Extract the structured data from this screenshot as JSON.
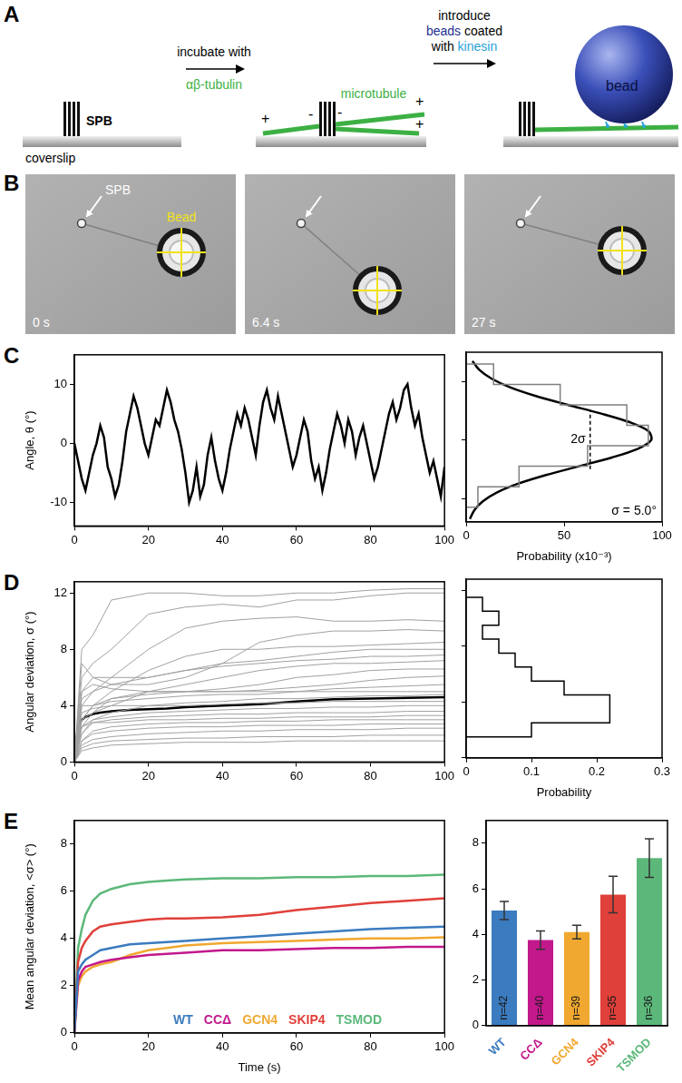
{
  "schematic": {
    "panel": "A",
    "spb": "SPB",
    "coverslip": "coverslip",
    "plus": "+",
    "minus": "-",
    "microtubule": "microtubule",
    "bead": "bead",
    "step1": [
      [
        {
          "text": "incubate with",
          "color": "#000000"
        }
      ],
      [
        {
          "text": "αβ-tubulin",
          "color": "#3cb043"
        }
      ]
    ],
    "step2": [
      [
        {
          "text": "introduce",
          "color": "#000000"
        }
      ],
      [
        {
          "text": "beads",
          "color": "#1f2f8f"
        },
        {
          "text": " coated",
          "color": "#000000"
        }
      ],
      [
        {
          "text": "with ",
          "color": "#000000"
        },
        {
          "text": "kinesin",
          "color": "#29a3d6"
        }
      ]
    ]
  },
  "micrographs": {
    "panel": "B",
    "spb_label": "SPB",
    "bead_label": "Bead",
    "frames": [
      "0 s",
      "6.4 s",
      "27 s"
    ]
  },
  "chart_data": [
    {
      "panel": "C",
      "type": "line",
      "ylabel": "Angle, θ (°)",
      "x": [
        0,
        1,
        2,
        3,
        4,
        5,
        6,
        7,
        8,
        9,
        10,
        11,
        12,
        13,
        14,
        15,
        16,
        17,
        18,
        19,
        20,
        21,
        22,
        23,
        24,
        25,
        26,
        27,
        28,
        29,
        30,
        31,
        32,
        33,
        34,
        35,
        36,
        37,
        38,
        39,
        40,
        41,
        42,
        43,
        44,
        45,
        46,
        47,
        48,
        49,
        50,
        51,
        52,
        53,
        54,
        55,
        56,
        57,
        58,
        59,
        60,
        61,
        62,
        63,
        64,
        65,
        66,
        67,
        68,
        69,
        70,
        71,
        72,
        73,
        74,
        75,
        76,
        77,
        78,
        79,
        80,
        81,
        82,
        83,
        84,
        85,
        86,
        87,
        88,
        89,
        90,
        91,
        92,
        93,
        94,
        95,
        96,
        97,
        98,
        99,
        100
      ],
      "series": [
        {
          "color": "#000000",
          "values": [
            0,
            -3,
            -6,
            -8,
            -5,
            -2,
            0,
            3,
            1,
            -4,
            -6,
            -9,
            -7,
            -3,
            2,
            5,
            8,
            6,
            3,
            0,
            -2,
            1,
            4,
            3,
            6,
            9,
            7,
            4,
            2,
            -1,
            -5,
            -10,
            -8,
            -4,
            -9,
            -7,
            -2,
            1,
            -3,
            -6,
            -8,
            -5,
            -1,
            2,
            5,
            3,
            6,
            4,
            1,
            -2,
            3,
            7,
            9,
            6,
            4,
            8,
            5,
            2,
            -1,
            -4,
            -2,
            1,
            4,
            2,
            -3,
            -6,
            -4,
            -8,
            -5,
            -1,
            2,
            5,
            3,
            0,
            4,
            2,
            -2,
            1,
            3,
            0,
            -3,
            -6,
            -4,
            -1,
            2,
            5,
            7,
            4,
            6,
            9,
            10,
            6,
            3,
            5,
            1,
            -2,
            -5,
            -3,
            -6,
            -9,
            -4
          ]
        }
      ],
      "xlim": [
        0,
        100
      ],
      "xticks": [
        0,
        20,
        40,
        60,
        80,
        100
      ],
      "ylim": [
        -14,
        15
      ],
      "yticks": [
        -10,
        0,
        10
      ],
      "grid": false
    },
    {
      "type": "histogram",
      "orientation": "horizontal",
      "xlabel": "Probability (x10⁻³)",
      "bins": [
        -11.5,
        -8,
        -4.5,
        -1,
        2.5,
        6,
        9.5,
        13
      ],
      "counts": [
        6,
        27,
        62,
        93,
        82,
        48,
        14
      ],
      "color": "#808080",
      "fit": {
        "color": "#000000",
        "y": [
          -13.5,
          -12,
          -10.5,
          -9,
          -7.5,
          -6,
          -4.5,
          -3,
          -1.5,
          0,
          1.5,
          3,
          4.5,
          6,
          7.5,
          9,
          10.5,
          12,
          13.5
        ],
        "x": [
          1.9,
          4.2,
          8.5,
          15.6,
          26.4,
          40.8,
          57.6,
          74.4,
          87.7,
          94.5,
          93.1,
          83.8,
          69,
          51.9,
          35.6,
          22.4,
          12.9,
          6.7,
          3.2
        ]
      },
      "sigma": 5.0,
      "sigma_label": "2σ",
      "fit_label": "σ = 5.0°",
      "xlim": [
        0,
        100
      ],
      "xticks": [
        0,
        50,
        100
      ],
      "ylim": [
        -14,
        15
      ],
      "yticks": [
        -10,
        0,
        10
      ],
      "tick_labels": "x",
      "grid": false
    },
    {
      "panel": "D",
      "type": "line",
      "ylabel": "Angular deviation, σ (°)",
      "x": [
        0,
        2,
        5,
        10,
        20,
        30,
        40,
        50,
        60,
        70,
        80,
        90,
        100
      ],
      "series": [
        {
          "color": "#a0a0a0",
          "values": [
            0,
            8,
            9,
            11.5,
            12,
            12,
            11.8,
            11.8,
            12,
            12,
            12.2,
            12.3,
            12.3
          ]
        },
        {
          "color": "#a0a0a0",
          "values": [
            0,
            6,
            7,
            8,
            10.5,
            11,
            11.2,
            11,
            11.5,
            11.5,
            11.8,
            12,
            12
          ]
        },
        {
          "color": "#a0a0a0",
          "values": [
            0,
            4,
            5,
            6,
            8,
            9.5,
            10,
            10.2,
            10.3,
            10,
            10,
            10.1,
            10
          ]
        },
        {
          "color": "#a0a0a0",
          "values": [
            0,
            5,
            6,
            5.5,
            5.5,
            6,
            7,
            8.5,
            9,
            9.3,
            9.3,
            9.4,
            9.3
          ]
        },
        {
          "color": "#a0a0a0",
          "values": [
            0,
            3,
            4,
            5,
            6.5,
            7.5,
            8,
            8,
            8.2,
            8.2,
            8.3,
            8.4,
            8.5
          ]
        },
        {
          "color": "#a0a0a0",
          "values": [
            0,
            7,
            6,
            6,
            6,
            6.5,
            7,
            7.2,
            7.5,
            7.8,
            8,
            8,
            8
          ]
        },
        {
          "color": "#a0a0a0",
          "values": [
            0,
            4.5,
            5,
            5.5,
            6,
            6.5,
            6.8,
            7,
            7.2,
            7.3,
            7.5,
            7.5,
            7.6
          ]
        },
        {
          "color": "#a0a0a0",
          "values": [
            0,
            3,
            3.5,
            4,
            5,
            5.5,
            6,
            6.5,
            6.8,
            7,
            7,
            7.1,
            7.2
          ]
        },
        {
          "color": "#a0a0a0",
          "values": [
            0,
            2.5,
            3.5,
            4.5,
            5,
            5,
            5.2,
            5.5,
            6,
            6.2,
            6.5,
            6.6,
            6.6
          ]
        },
        {
          "color": "#a0a0a0",
          "values": [
            0,
            5,
            5.5,
            5.2,
            5,
            5,
            5,
            5.1,
            5.3,
            5.5,
            5.8,
            6,
            6.1
          ]
        },
        {
          "color": "#a0a0a0",
          "values": [
            0,
            3,
            4,
            4.5,
            4.8,
            5,
            5,
            5,
            5,
            5.2,
            5.3,
            5.4,
            5.5
          ]
        },
        {
          "color": "#a0a0a0",
          "values": [
            0,
            4,
            4,
            4.3,
            4.5,
            4.7,
            4.8,
            4.8,
            5,
            5,
            5,
            5,
            5
          ]
        },
        {
          "color": "#a0a0a0",
          "values": [
            0,
            2,
            3,
            3.5,
            4,
            4.2,
            4.3,
            4.5,
            4.5,
            4.6,
            4.7,
            4.7,
            4.8
          ]
        },
        {
          "color": "#a0a0a0",
          "values": [
            0,
            3.5,
            3.8,
            4,
            4,
            4,
            4.1,
            4.2,
            4.2,
            4.3,
            4.3,
            4.3,
            4.3
          ]
        },
        {
          "color": "#a0a0a0",
          "values": [
            0,
            2.5,
            3,
            3.2,
            3.5,
            3.6,
            3.7,
            3.8,
            3.8,
            3.9,
            3.9,
            4,
            4
          ]
        },
        {
          "color": "#a0a0a0",
          "values": [
            0,
            2,
            2.8,
            3,
            3.2,
            3.3,
            3.4,
            3.4,
            3.5,
            3.5,
            3.5,
            3.6,
            3.6
          ]
        },
        {
          "color": "#a0a0a0",
          "values": [
            0,
            2.5,
            2.8,
            2.8,
            3,
            3,
            3.1,
            3.1,
            3.2,
            3.2,
            3.2,
            3.3,
            3.3
          ]
        },
        {
          "color": "#a0a0a0",
          "values": [
            0,
            1.5,
            2.2,
            2.5,
            2.7,
            2.8,
            2.8,
            2.9,
            2.9,
            3,
            3,
            3,
            3
          ]
        },
        {
          "color": "#a0a0a0",
          "values": [
            0,
            1.5,
            2,
            2.2,
            2.4,
            2.5,
            2.5,
            2.6,
            2.6,
            2.6,
            2.7,
            2.7,
            2.7
          ]
        },
        {
          "color": "#a0a0a0",
          "values": [
            0,
            1.2,
            1.6,
            1.8,
            2,
            2.1,
            2.2,
            2.2,
            2.3,
            2.3,
            2.3,
            2.4,
            2.4
          ]
        },
        {
          "color": "#a0a0a0",
          "values": [
            0,
            1,
            1.3,
            1.5,
            1.6,
            1.7,
            1.7,
            1.8,
            1.8,
            1.8,
            1.9,
            1.9,
            1.9
          ]
        },
        {
          "color": "#a0a0a0",
          "values": [
            0,
            0.8,
            1,
            1.2,
            1.3,
            1.4,
            1.4,
            1.4,
            1.5,
            1.5,
            1.5,
            1.5,
            1.5
          ]
        },
        {
          "color": "#000000",
          "x": [
            0,
            1,
            2,
            3,
            5,
            7,
            10,
            15,
            20,
            25,
            30,
            40,
            50,
            60,
            70,
            80,
            90,
            100
          ],
          "values": [
            0,
            2.6,
            3.0,
            3.2,
            3.4,
            3.5,
            3.6,
            3.7,
            3.75,
            3.8,
            3.9,
            4.0,
            4.1,
            4.3,
            4.45,
            4.5,
            4.55,
            4.6
          ]
        }
      ],
      "xlim": [
        0,
        100
      ],
      "xticks": [
        0,
        20,
        40,
        60,
        80,
        100
      ],
      "ylim": [
        0,
        12.8
      ],
      "yticks": [
        0,
        4,
        8,
        12
      ],
      "grid": false
    },
    {
      "type": "histogram",
      "orientation": "horizontal",
      "xlabel": "Probability",
      "bins": [
        1.5,
        2.5,
        3.5,
        4.5,
        5.5,
        6.5,
        7.5,
        8.5,
        9.5,
        10.5,
        11.5
      ],
      "counts": [
        0.1,
        0.22,
        0.22,
        0.15,
        0.1,
        0.075,
        0.05,
        0.025,
        0.05,
        0.025
      ],
      "color": "#000000",
      "xlim": [
        0,
        0.3
      ],
      "xticks": [
        0,
        0.1,
        0.2,
        0.3
      ],
      "ylim": [
        0,
        12.8
      ],
      "yticks": [
        0,
        4,
        8,
        12
      ],
      "tick_labels": "x",
      "grid": false
    },
    {
      "panel": "E",
      "type": "line",
      "xlabel": "Time (s)",
      "ylabel": "Mean angular deviation, <σ> (°)",
      "x": [
        0,
        1,
        2,
        3,
        5,
        7,
        10,
        15,
        20,
        25,
        30,
        40,
        50,
        60,
        70,
        80,
        90,
        100
      ],
      "series": [
        {
          "name": "WT",
          "color": "#3b7bbf",
          "values": [
            0,
            2.6,
            2.9,
            3.1,
            3.3,
            3.5,
            3.6,
            3.75,
            3.8,
            3.85,
            3.9,
            4.0,
            4.1,
            4.2,
            4.3,
            4.4,
            4.45,
            4.5
          ]
        },
        {
          "name": "CCΔ",
          "color": "#c2188c",
          "values": [
            0,
            2.2,
            2.6,
            2.8,
            2.9,
            3.0,
            3.1,
            3.2,
            3.3,
            3.35,
            3.4,
            3.5,
            3.5,
            3.55,
            3.6,
            3.6,
            3.65,
            3.65
          ]
        },
        {
          "name": "GCN4",
          "color": "#f0a830",
          "values": [
            0,
            2.0,
            2.4,
            2.6,
            2.8,
            2.9,
            3.0,
            3.3,
            3.5,
            3.6,
            3.7,
            3.8,
            3.85,
            3.9,
            3.95,
            4.0,
            4.0,
            4.05
          ]
        },
        {
          "name": "SKIP4",
          "color": "#e0403a",
          "values": [
            0,
            3.0,
            3.6,
            3.9,
            4.3,
            4.5,
            4.6,
            4.7,
            4.8,
            4.85,
            4.85,
            4.9,
            5.0,
            5.2,
            5.35,
            5.5,
            5.6,
            5.7
          ]
        },
        {
          "name": "TSMOD",
          "color": "#5cb87a",
          "values": [
            0,
            3.6,
            4.4,
            5.0,
            5.6,
            5.9,
            6.1,
            6.3,
            6.4,
            6.45,
            6.5,
            6.55,
            6.55,
            6.6,
            6.6,
            6.65,
            6.65,
            6.7
          ]
        }
      ],
      "xlim": [
        0,
        100
      ],
      "xticks": [
        0,
        20,
        40,
        60,
        80,
        100
      ],
      "ylim": [
        0,
        9
      ],
      "yticks": [
        0,
        2,
        4,
        6,
        8
      ],
      "legend": "bottom",
      "grid": false
    },
    {
      "type": "bar",
      "categories": [
        "WT",
        "CCΔ",
        "GCN4",
        "SKIP4",
        "TSMOD"
      ],
      "values": [
        5.05,
        3.75,
        4.1,
        5.75,
        7.35
      ],
      "errors": [
        0.4,
        0.4,
        0.3,
        0.8,
        0.85
      ],
      "count_labels": [
        "n=42",
        "n=40",
        "n=39",
        "n=35",
        "n=36"
      ],
      "colors": [
        "#3b7bbf",
        "#c2188c",
        "#f0a830",
        "#e0403a",
        "#5cb87a"
      ],
      "ylim": [
        0,
        9
      ],
      "yticks": [
        0,
        2,
        4,
        6,
        8
      ],
      "grid": false
    }
  ]
}
